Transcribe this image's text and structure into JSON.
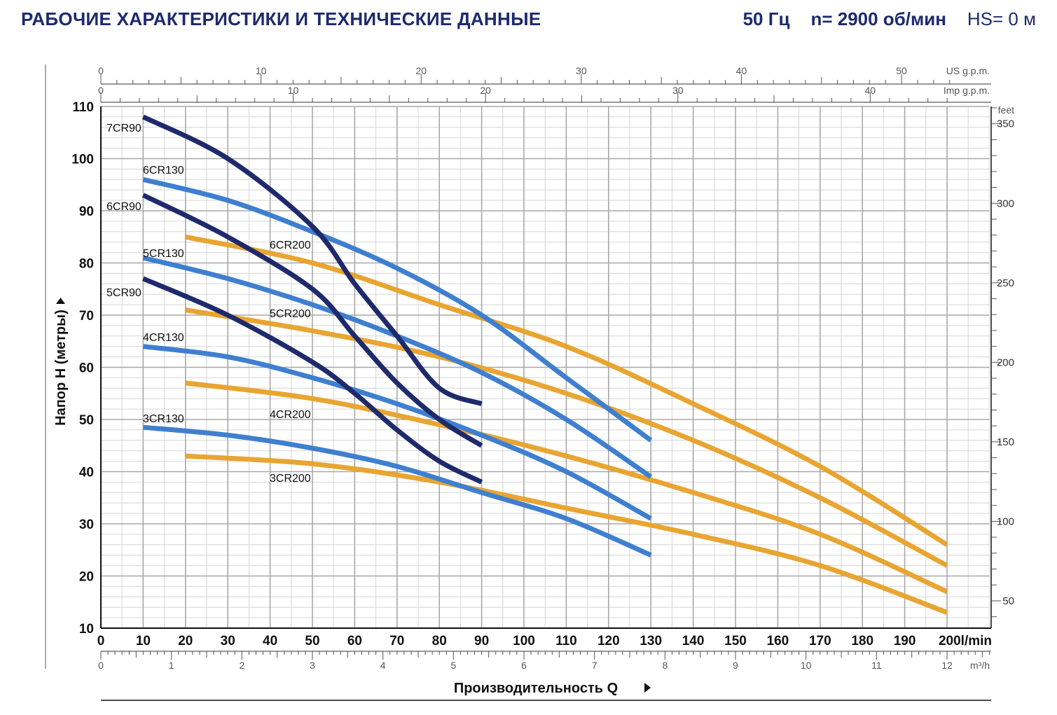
{
  "header": {
    "title": "РАБОЧИЕ ХАРАКТЕРИСТИКИ И ТЕХНИЧЕСКИЕ ДАННЫЕ",
    "freq": "50 Гц",
    "speed": "n= 2900 об/мин",
    "hs": "HS= 0 м"
  },
  "chart_data": {
    "type": "line",
    "xlabel": "Производительность Q",
    "ylabel": "Напор H (метры)",
    "x_unit": "l/min",
    "xlim": [
      0,
      200
    ],
    "ylim": [
      10,
      110
    ],
    "x_ticks": [
      0,
      10,
      20,
      30,
      40,
      50,
      60,
      70,
      80,
      90,
      100,
      110,
      120,
      130,
      140,
      150,
      160,
      170,
      180,
      190,
      200
    ],
    "x_tick_labels": [
      "0",
      "10",
      "20",
      "30",
      "40",
      "50",
      "60",
      "70",
      "80",
      "90",
      "100",
      "110",
      "120",
      "130",
      "140",
      "150",
      "160",
      "170",
      "180",
      "190",
      "200"
    ],
    "x_last_unit_label": "l/min",
    "y_ticks": [
      10,
      20,
      30,
      40,
      50,
      60,
      70,
      80,
      90,
      100,
      110
    ],
    "grid": true,
    "secondary_axes": {
      "us_gpm": {
        "label": "US g.p.m.",
        "ticks": [
          0,
          10,
          20,
          30,
          40,
          50
        ]
      },
      "imp_gpm": {
        "label": "Imp g.p.m.",
        "ticks": [
          0,
          10,
          20,
          30,
          40
        ]
      },
      "m3h": {
        "label": "m³/h",
        "ticks": [
          0,
          1,
          2,
          3,
          4,
          5,
          6,
          7,
          8,
          9,
          10,
          11,
          12
        ]
      },
      "feet": {
        "label": "feet",
        "ticks": [
          50,
          100,
          150,
          200,
          250,
          300,
          350
        ]
      }
    },
    "colors": {
      "CR90": "#1e2a6b",
      "CR130": "#3f7fcf",
      "CR200": "#e8a531"
    },
    "series": [
      {
        "name": "7CR90",
        "family": "CR90",
        "x": [
          10,
          30,
          50,
          60,
          70,
          80,
          90
        ],
        "y": [
          108,
          100,
          87,
          76,
          66,
          56,
          53
        ]
      },
      {
        "name": "6CR90",
        "family": "CR90",
        "x": [
          10,
          30,
          50,
          60,
          70,
          80,
          90
        ],
        "y": [
          93,
          85,
          75,
          66,
          57,
          50,
          45
        ]
      },
      {
        "name": "5CR90",
        "family": "CR90",
        "x": [
          10,
          30,
          50,
          60,
          70,
          80,
          90
        ],
        "y": [
          77,
          70,
          61,
          55,
          48,
          42,
          38
        ]
      },
      {
        "name": "6CR130",
        "family": "CR130",
        "x": [
          10,
          30,
          50,
          70,
          90,
          110,
          130
        ],
        "y": [
          96,
          92,
          86,
          79,
          70,
          58,
          46
        ]
      },
      {
        "name": "5CR130",
        "family": "CR130",
        "x": [
          10,
          30,
          50,
          70,
          90,
          110,
          130
        ],
        "y": [
          81,
          77,
          72,
          66,
          59,
          50,
          39
        ]
      },
      {
        "name": "4CR130",
        "family": "CR130",
        "x": [
          10,
          30,
          50,
          70,
          90,
          110,
          130
        ],
        "y": [
          64,
          62,
          58,
          53,
          47,
          40,
          31
        ]
      },
      {
        "name": "3CR130",
        "family": "CR130",
        "x": [
          10,
          30,
          50,
          70,
          90,
          110,
          130
        ],
        "y": [
          48.5,
          47,
          44.5,
          41,
          36,
          31,
          24
        ]
      },
      {
        "name": "6CR200",
        "family": "CR200",
        "x": [
          20,
          50,
          80,
          110,
          140,
          170,
          200
        ],
        "y": [
          85,
          80,
          72,
          64,
          53,
          41,
          26
        ]
      },
      {
        "name": "5CR200",
        "family": "CR200",
        "x": [
          20,
          50,
          80,
          110,
          140,
          170,
          200
        ],
        "y": [
          71,
          67,
          62,
          55,
          46,
          35,
          22
        ]
      },
      {
        "name": "4CR200",
        "family": "CR200",
        "x": [
          20,
          50,
          80,
          110,
          140,
          170,
          200
        ],
        "y": [
          57,
          54,
          49,
          43,
          36,
          28,
          17
        ]
      },
      {
        "name": "3CR200",
        "family": "CR200",
        "x": [
          20,
          50,
          80,
          110,
          140,
          170,
          200
        ],
        "y": [
          43,
          41.5,
          38,
          33,
          28,
          22,
          13
        ]
      }
    ]
  }
}
